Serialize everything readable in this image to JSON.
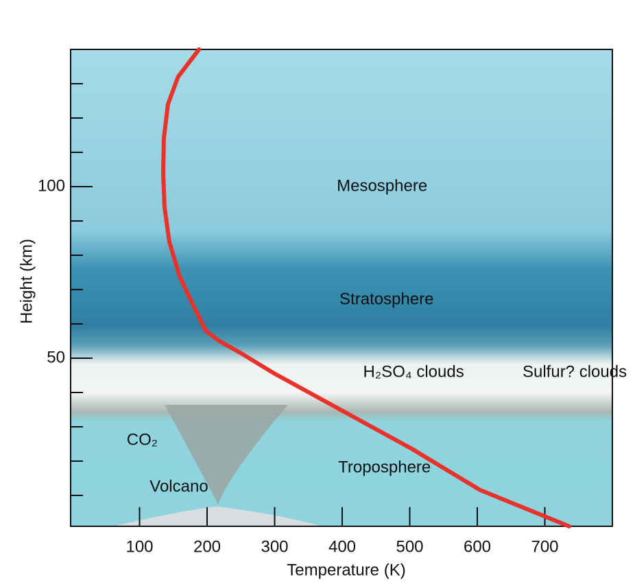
{
  "chart_data": {
    "type": "line",
    "x_label": "Temperature (K)",
    "y_label": "Height (km)",
    "xlim": [
      0,
      800
    ],
    "ylim": [
      1,
      140
    ],
    "xticks": [
      100,
      200,
      300,
      400,
      500,
      600,
      700
    ],
    "yticks": [
      50,
      100
    ],
    "y_minor_ticks": [
      10,
      20,
      30,
      40,
      60,
      70,
      80,
      90,
      110,
      120,
      130
    ],
    "series": [
      {
        "color": "#e8322a",
        "x": [
          188,
          157,
          142,
          136,
          135,
          137,
          144,
          159,
          178,
          198,
          218,
          249,
          299,
          401,
          503,
          604,
          736
        ],
        "values": [
          140,
          132,
          124,
          114,
          104,
          94,
          84,
          74,
          66,
          58,
          55,
          51.6,
          45.6,
          34.6,
          23.6,
          11.6,
          1
        ]
      }
    ],
    "annotations": [
      {
        "text": "Mesosphere",
        "x": 392,
        "y": 100
      },
      {
        "text": "Stratosphere",
        "x": 396,
        "y": 67
      },
      {
        "text": "H₂SO₄ clouds",
        "x": 431,
        "y": 45.8
      },
      {
        "text": "Sulfur? clouds",
        "x": 667,
        "y": 45.8
      },
      {
        "text": "Troposphere",
        "x": 394,
        "y": 18
      },
      {
        "text": "CO₂",
        "x": 81,
        "y": 26
      },
      {
        "text": "Volcano",
        "x": 115,
        "y": 12.4
      }
    ]
  }
}
